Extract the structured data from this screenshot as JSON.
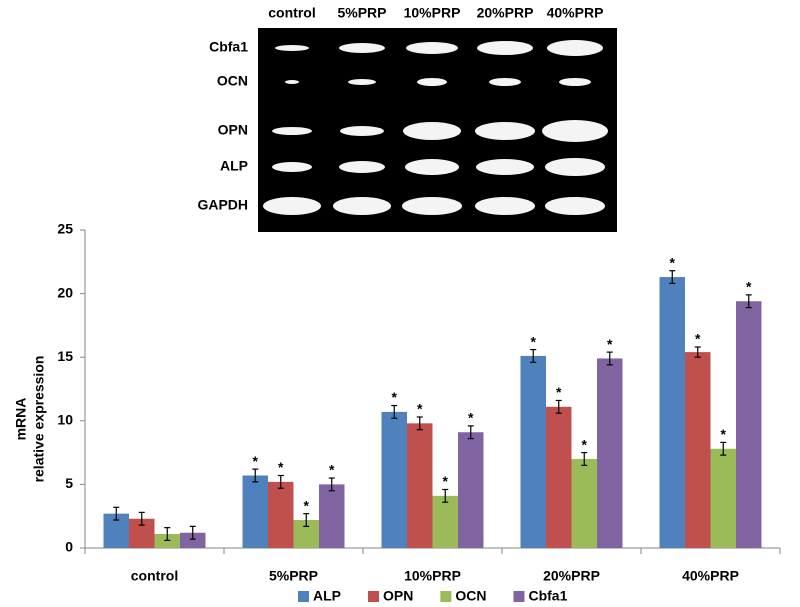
{
  "gel": {
    "lanes": [
      "control",
      "5%PRP",
      "10%PRP",
      "20%PRP",
      "40%PRP"
    ],
    "markers": [
      "Cbfa1",
      "OCN",
      "OPN",
      "ALP",
      "GAPDH"
    ]
  },
  "chart_data": {
    "type": "bar",
    "y_label": [
      "mRNA",
      "relative expression"
    ],
    "categories": [
      "control",
      "5%PRP",
      "10%PRP",
      "20%PRP",
      "40%PRP"
    ],
    "series": [
      {
        "name": "ALP",
        "color": "#4f81bd",
        "values": [
          2.7,
          5.7,
          10.7,
          15.1,
          21.3
        ],
        "errors": [
          0.5,
          0.5,
          0.5,
          0.5,
          0.5
        ],
        "annotations": [
          null,
          "*",
          "*",
          "*",
          "*"
        ]
      },
      {
        "name": "OPN",
        "color": "#c0504d",
        "values": [
          2.3,
          5.2,
          9.8,
          11.1,
          15.4
        ],
        "errors": [
          0.5,
          0.5,
          0.5,
          0.5,
          0.4
        ],
        "annotations": [
          null,
          "*",
          "*",
          "*",
          "*"
        ]
      },
      {
        "name": "OCN",
        "color": "#9bbb59",
        "values": [
          1.1,
          2.2,
          4.1,
          7.0,
          7.8
        ],
        "errors": [
          0.5,
          0.5,
          0.5,
          0.5,
          0.5
        ],
        "annotations": [
          null,
          "*",
          "*",
          "*",
          "*"
        ]
      },
      {
        "name": "Cbfa1",
        "color": "#8064a2",
        "values": [
          1.2,
          5.0,
          9.1,
          14.9,
          19.4
        ],
        "errors": [
          0.5,
          0.5,
          0.5,
          0.5,
          0.5
        ],
        "annotations": [
          null,
          "*",
          "*",
          "*",
          "*"
        ]
      }
    ],
    "ylim": [
      0,
      25
    ],
    "yticks": [
      0,
      5,
      10,
      15,
      20,
      25
    ],
    "grid": false,
    "legend": "bottom"
  }
}
